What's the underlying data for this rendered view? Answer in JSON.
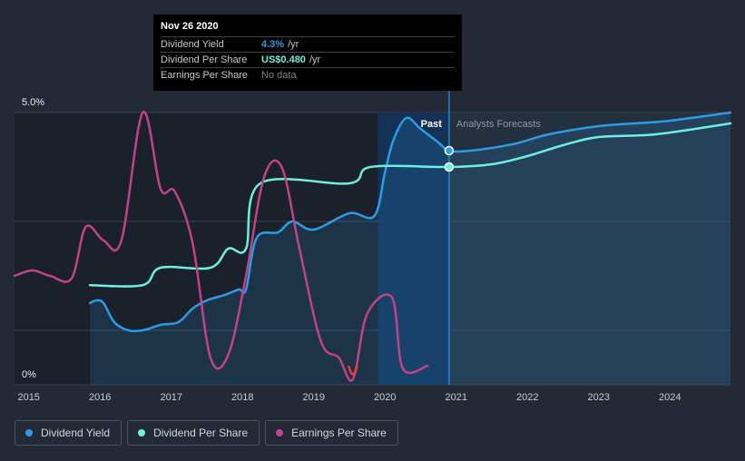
{
  "tooltip": {
    "date": "Nov 26 2020",
    "rows": [
      {
        "name": "Dividend Yield",
        "value": "4.3%",
        "unit": "/yr",
        "color": "#2e9be6"
      },
      {
        "name": "Dividend Per Share",
        "value": "US$0.480",
        "unit": "/yr",
        "color": "#6ff0dc"
      },
      {
        "name": "Earnings Per Share",
        "value": "No data",
        "unit": "",
        "color": "#7d838c"
      }
    ]
  },
  "labels": {
    "past": "Past",
    "forecast": "Analysts Forecasts"
  },
  "legend": [
    {
      "label": "Dividend Yield",
      "color": "#2e9be6"
    },
    {
      "label": "Dividend Per Share",
      "color": "#6ff0dc"
    },
    {
      "label": "Earnings Per Share",
      "color": "#c2428a"
    }
  ],
  "chart_data": {
    "type": "line",
    "y_tick_labels": [
      "5.0%",
      "0%"
    ],
    "ylim": [
      0,
      5
    ],
    "xlim": [
      2014.8,
      2024.85
    ],
    "x_ticks": [
      2015,
      2016,
      2017,
      2018,
      2019,
      2020,
      2021,
      2022,
      2023,
      2024
    ],
    "past_forecast_split": 2020.9,
    "highlight_start": 2019.9,
    "grid": true,
    "legend_position": "bottom-left",
    "series": [
      {
        "name": "Dividend Yield",
        "color": "#2e9be6",
        "points": [
          [
            2015.86,
            1.5
          ],
          [
            2015.95,
            1.55
          ],
          [
            2016.05,
            1.5
          ],
          [
            2016.2,
            1.15
          ],
          [
            2016.4,
            1.0
          ],
          [
            2016.6,
            1.0
          ],
          [
            2016.85,
            1.1
          ],
          [
            2017.1,
            1.15
          ],
          [
            2017.3,
            1.4
          ],
          [
            2017.5,
            1.55
          ],
          [
            2017.75,
            1.65
          ],
          [
            2017.95,
            1.75
          ],
          [
            2018.05,
            1.75
          ],
          [
            2018.2,
            2.7
          ],
          [
            2018.5,
            2.8
          ],
          [
            2018.7,
            3.0
          ],
          [
            2019.0,
            2.85
          ],
          [
            2019.5,
            3.15
          ],
          [
            2019.85,
            3.1
          ],
          [
            2020.0,
            3.9
          ],
          [
            2020.12,
            4.5
          ],
          [
            2020.3,
            4.9
          ],
          [
            2020.5,
            4.7
          ],
          [
            2020.75,
            4.45
          ],
          [
            2020.9,
            4.3
          ],
          [
            2021.2,
            4.3
          ],
          [
            2021.8,
            4.42
          ],
          [
            2022.3,
            4.6
          ],
          [
            2023.0,
            4.75
          ],
          [
            2023.5,
            4.8
          ],
          [
            2024.0,
            4.85
          ],
          [
            2024.85,
            5.0
          ]
        ],
        "forecast_from": 2020.9
      },
      {
        "name": "Dividend Per Share",
        "color": "#6ff0dc",
        "points": [
          [
            2015.86,
            1.83
          ],
          [
            2016.6,
            1.83
          ],
          [
            2016.85,
            2.15
          ],
          [
            2017.55,
            2.15
          ],
          [
            2017.8,
            2.5
          ],
          [
            2018.05,
            2.5
          ],
          [
            2018.25,
            3.7
          ],
          [
            2019.5,
            3.7
          ],
          [
            2019.8,
            4.0
          ],
          [
            2020.9,
            4.0
          ],
          [
            2021.5,
            4.05
          ],
          [
            2022.0,
            4.2
          ],
          [
            2022.5,
            4.4
          ],
          [
            2023.0,
            4.55
          ],
          [
            2023.8,
            4.6
          ],
          [
            2024.85,
            4.8
          ]
        ],
        "forecast_from": 2020.9
      },
      {
        "name": "Earnings Per Share",
        "color": "#c2428a",
        "negative_color": "#e8403a",
        "points": [
          [
            2014.8,
            2.0
          ],
          [
            2015.05,
            2.1
          ],
          [
            2015.3,
            2.0
          ],
          [
            2015.6,
            1.95
          ],
          [
            2015.8,
            2.9
          ],
          [
            2016.05,
            2.65
          ],
          [
            2016.3,
            2.65
          ],
          [
            2016.6,
            5.0
          ],
          [
            2016.85,
            3.6
          ],
          [
            2017.05,
            3.55
          ],
          [
            2017.3,
            2.6
          ],
          [
            2017.55,
            0.5
          ],
          [
            2017.8,
            0.55
          ],
          [
            2018.05,
            2.0
          ],
          [
            2018.3,
            3.8
          ],
          [
            2018.55,
            4.0
          ],
          [
            2018.8,
            2.5
          ],
          [
            2019.1,
            0.8
          ],
          [
            2019.35,
            0.5
          ],
          [
            2019.55,
            0.1
          ],
          [
            2019.75,
            1.3
          ],
          [
            2020.1,
            1.6
          ],
          [
            2020.25,
            0.3
          ],
          [
            2020.6,
            0.35
          ]
        ]
      }
    ]
  }
}
